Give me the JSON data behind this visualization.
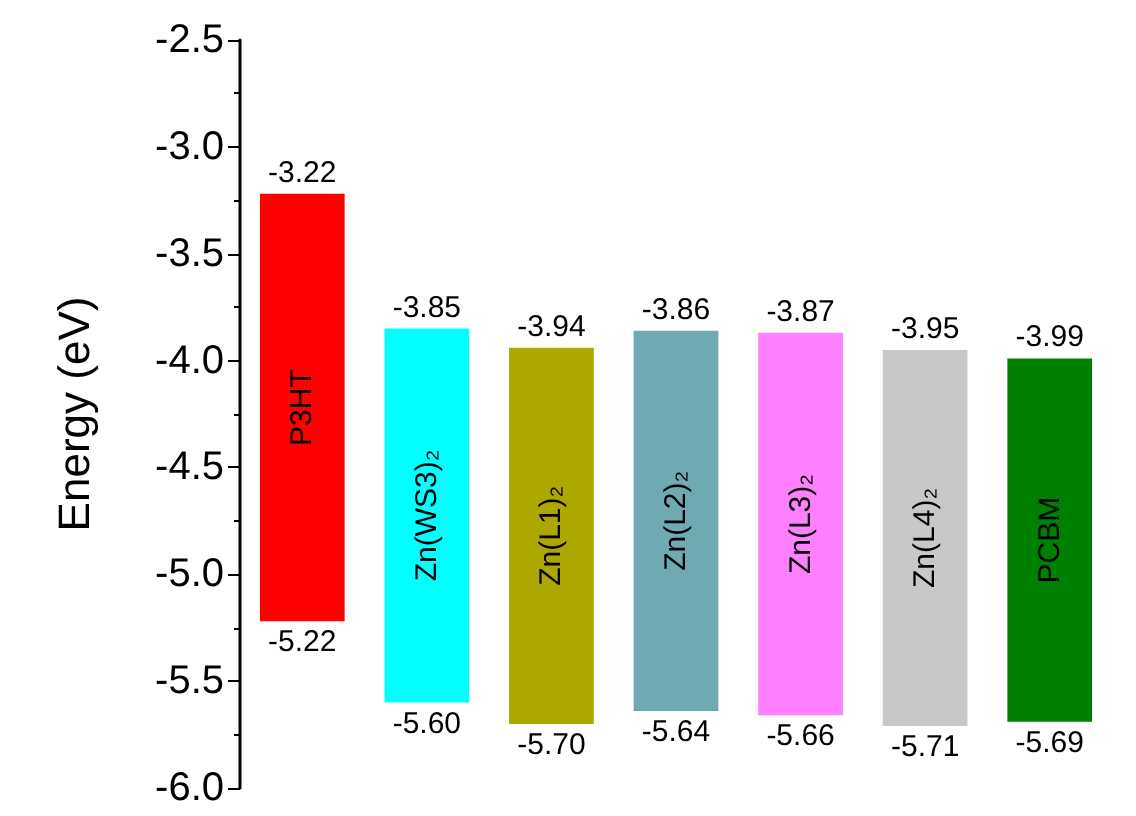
{
  "chart_data": {
    "type": "bar",
    "ylabel": "Energy (eV)",
    "categories": [
      "P3HT",
      "Zn(WS3)₂",
      "Zn(L1)₂",
      "Zn(L2)₂",
      "Zn(L3)₂",
      "Zn(L4)₂",
      "PCBM"
    ],
    "base": [
      -5.22,
      -5.6,
      -5.7,
      -5.64,
      -5.66,
      -5.71,
      -5.69
    ],
    "values": [
      2.0,
      1.75,
      1.76,
      1.78,
      1.79,
      1.76,
      1.7
    ],
    "colors": [
      "#ff0000",
      "#00ffff",
      "#aca800",
      "#6fa9b1",
      "#ff80ff",
      "#c8c8c8",
      "#008000"
    ],
    "ylim": [
      -6.0,
      -2.5
    ],
    "yticks": [
      {
        "value": -6.0,
        "label": "-6.0"
      },
      {
        "value": -5.5,
        "label": "-5.5"
      },
      {
        "value": -5.0,
        "label": "-5.0"
      },
      {
        "value": -4.5,
        "label": "-4.5"
      },
      {
        "value": -4.0,
        "label": "-4.0"
      },
      {
        "value": -3.5,
        "label": "-3.5"
      },
      {
        "value": -3.0,
        "label": "-3.0"
      },
      {
        "value": -2.5,
        "label": "-2.5"
      }
    ],
    "tick_labels": "y",
    "annotations": [
      {
        "text": "-3.22",
        "x": "P3HT",
        "y": -3.22
      },
      {
        "text": "-5.22",
        "x": "P3HT",
        "y": -5.22
      },
      {
        "text": "-3.85",
        "x": "Zn(WS3)₂",
        "y": -3.85
      },
      {
        "text": "-5.60",
        "x": "Zn(WS3)₂",
        "y": -5.6
      },
      {
        "text": "-3.94",
        "x": "Zn(L1)₂",
        "y": -3.94
      },
      {
        "text": "-5.70",
        "x": "Zn(L1)₂",
        "y": -5.7
      },
      {
        "text": "-3.86",
        "x": "Zn(L2)₂",
        "y": -3.86
      },
      {
        "text": "-5.64",
        "x": "Zn(L2)₂",
        "y": -5.64
      },
      {
        "text": "-3.87",
        "x": "Zn(L3)₂",
        "y": -3.87
      },
      {
        "text": "-5.66",
        "x": "Zn(L3)₂",
        "y": -5.66
      },
      {
        "text": "-3.95",
        "x": "Zn(L4)₂",
        "y": -3.95
      },
      {
        "text": "-5.71",
        "x": "Zn(L4)₂",
        "y": -5.71
      },
      {
        "text": "-3.99",
        "x": "PCBM",
        "y": -3.99
      },
      {
        "text": "-5.69",
        "x": "PCBM",
        "y": -5.69
      }
    ]
  }
}
